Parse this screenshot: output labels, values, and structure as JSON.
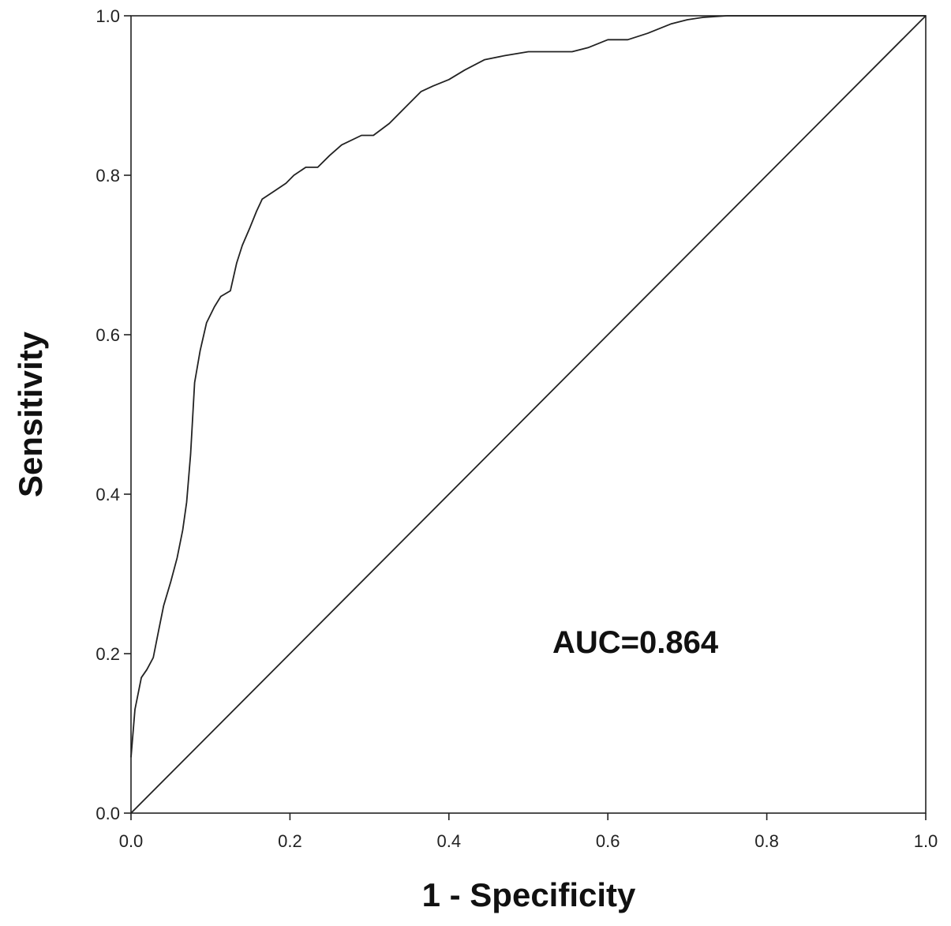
{
  "chart_data": {
    "type": "line",
    "xlabel": "1 - Specificity",
    "ylabel": "Sensitivity",
    "xlim": [
      0,
      1
    ],
    "ylim": [
      0,
      1
    ],
    "x_ticks": [
      "0.0",
      "0.2",
      "0.4",
      "0.6",
      "0.8",
      "1.0"
    ],
    "y_ticks": [
      "0.0",
      "0.2",
      "0.4",
      "0.6",
      "0.8",
      "1.0"
    ],
    "grid": false,
    "annotation": "AUC=0.864",
    "series": [
      {
        "points": [
          [
            0.0,
            0.07
          ],
          [
            0.005,
            0.13
          ],
          [
            0.013,
            0.17
          ],
          [
            0.02,
            0.18
          ],
          [
            0.028,
            0.195
          ],
          [
            0.035,
            0.23
          ],
          [
            0.041,
            0.26
          ],
          [
            0.05,
            0.29
          ],
          [
            0.058,
            0.32
          ],
          [
            0.065,
            0.355
          ],
          [
            0.07,
            0.39
          ],
          [
            0.075,
            0.45
          ],
          [
            0.08,
            0.54
          ],
          [
            0.087,
            0.58
          ],
          [
            0.095,
            0.615
          ],
          [
            0.105,
            0.635
          ],
          [
            0.113,
            0.648
          ],
          [
            0.125,
            0.655
          ],
          [
            0.133,
            0.69
          ],
          [
            0.14,
            0.712
          ],
          [
            0.15,
            0.735
          ],
          [
            0.158,
            0.755
          ],
          [
            0.165,
            0.77
          ],
          [
            0.18,
            0.78
          ],
          [
            0.195,
            0.79
          ],
          [
            0.205,
            0.8
          ],
          [
            0.22,
            0.81
          ],
          [
            0.235,
            0.81
          ],
          [
            0.25,
            0.825
          ],
          [
            0.265,
            0.838
          ],
          [
            0.29,
            0.85
          ],
          [
            0.305,
            0.85
          ],
          [
            0.325,
            0.865
          ],
          [
            0.345,
            0.885
          ],
          [
            0.365,
            0.905
          ],
          [
            0.38,
            0.912
          ],
          [
            0.4,
            0.92
          ],
          [
            0.42,
            0.932
          ],
          [
            0.445,
            0.945
          ],
          [
            0.47,
            0.95
          ],
          [
            0.5,
            0.955
          ],
          [
            0.53,
            0.955
          ],
          [
            0.555,
            0.955
          ],
          [
            0.575,
            0.96
          ],
          [
            0.6,
            0.97
          ],
          [
            0.625,
            0.97
          ],
          [
            0.65,
            0.978
          ],
          [
            0.68,
            0.99
          ],
          [
            0.7,
            0.995
          ],
          [
            0.72,
            0.998
          ],
          [
            0.75,
            1.0
          ],
          [
            0.8,
            1.0
          ],
          [
            0.9,
            1.0
          ],
          [
            1.0,
            1.0
          ]
        ]
      },
      {
        "points": [
          [
            0,
            0
          ],
          [
            1,
            1
          ]
        ]
      }
    ]
  }
}
